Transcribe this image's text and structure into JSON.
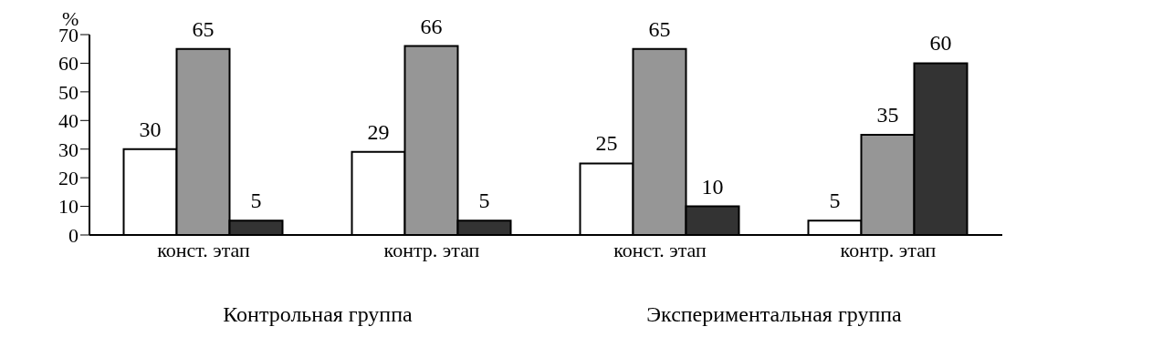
{
  "chart_data": {
    "type": "bar",
    "ylabel": "%",
    "categories": [
      "конст. этап",
      "контр. этап",
      "конст. этап",
      "контр. этап"
    ],
    "series": [
      {
        "color": "#ffffff",
        "values": [
          30,
          29,
          25,
          5
        ]
      },
      {
        "color": "#969696",
        "values": [
          65,
          66,
          65,
          35
        ]
      },
      {
        "color": "#333333",
        "values": [
          5,
          5,
          10,
          60
        ]
      }
    ],
    "ylim": [
      0,
      70
    ],
    "yticks": [
      0,
      10,
      20,
      30,
      40,
      50,
      60,
      70
    ],
    "grid": false,
    "legend": false,
    "data_labels": true,
    "annotations": [
      "Контрольная группа",
      "Экспериментальная группа"
    ]
  }
}
